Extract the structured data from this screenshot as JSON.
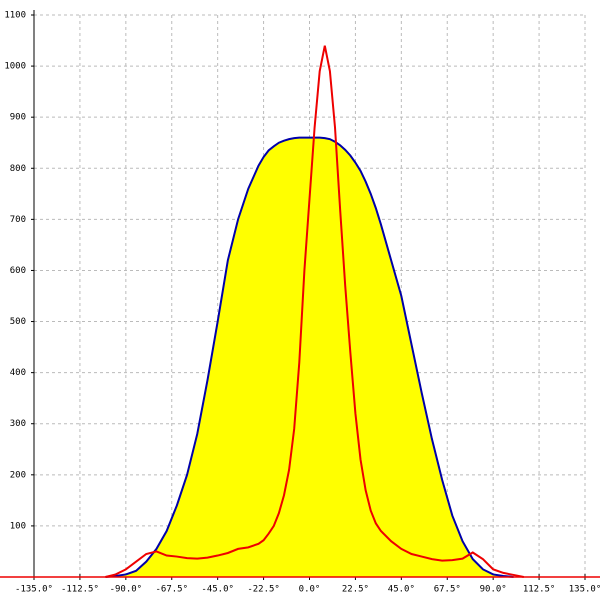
{
  "chart_data": {
    "type": "line",
    "x": [
      -100,
      -95,
      -90,
      -85,
      -80,
      -75,
      -70,
      -65,
      -60,
      -55,
      -50,
      -45,
      -40,
      -35,
      -30,
      -25,
      -22.5,
      -20,
      -17.5,
      -15,
      -12.5,
      -10,
      -7.5,
      -5,
      -2.5,
      0,
      2.5,
      5,
      7.5,
      10,
      12.5,
      15,
      17.5,
      20,
      22.5,
      25,
      27.5,
      30,
      32.5,
      35,
      40,
      45,
      50,
      55,
      60,
      65,
      70,
      75,
      80,
      85,
      90,
      95,
      100,
      105
    ],
    "series": [
      {
        "color": "#0000aa",
        "fill": "#ffff00",
        "values": [
          0,
          2,
          5,
          12,
          30,
          55,
          90,
          140,
          200,
          280,
          385,
          500,
          620,
          700,
          760,
          805,
          822,
          835,
          843,
          850,
          854,
          857,
          859,
          860,
          860,
          860,
          860,
          860,
          859,
          857,
          852,
          845,
          836,
          825,
          811,
          795,
          774,
          750,
          722,
          690,
          620,
          550,
          455,
          360,
          270,
          190,
          120,
          70,
          35,
          15,
          5,
          2,
          0,
          null
        ]
      },
      {
        "color": "#ee0000",
        "values": [
          0,
          5,
          15,
          30,
          45,
          50,
          42,
          40,
          37,
          36,
          38,
          42,
          47,
          55,
          58,
          65,
          72,
          85,
          100,
          125,
          160,
          210,
          290,
          420,
          600,
          740,
          880,
          990,
          1040,
          990,
          880,
          720,
          570,
          440,
          320,
          230,
          170,
          130,
          105,
          90,
          70,
          55,
          45,
          40,
          35,
          32,
          33,
          36,
          48,
          35,
          15,
          8,
          4,
          0
        ]
      }
    ],
    "xlim": [
      -135,
      135
    ],
    "xticks": [
      {
        "value": -135,
        "label": "-135.0°"
      },
      {
        "value": -112.5,
        "label": "-112.5°"
      },
      {
        "value": -90,
        "label": "-90.0°"
      },
      {
        "value": -67.5,
        "label": "-67.5°"
      },
      {
        "value": -45,
        "label": "-45.0°"
      },
      {
        "value": -22.5,
        "label": "-22.5°"
      },
      {
        "value": 0,
        "label": "0.0°"
      },
      {
        "value": 22.5,
        "label": "22.5°"
      },
      {
        "value": 45,
        "label": "45.0°"
      },
      {
        "value": 67.5,
        "label": "67.5°"
      },
      {
        "value": 90,
        "label": "90.0°"
      },
      {
        "value": 112.5,
        "label": "112.5°"
      },
      {
        "value": 135,
        "label": "135.0°"
      }
    ],
    "ylim": [
      0,
      1100
    ],
    "yticks": [
      100,
      200,
      300,
      400,
      500,
      600,
      700,
      800,
      900,
      1000,
      1100
    ],
    "grid": true
  }
}
